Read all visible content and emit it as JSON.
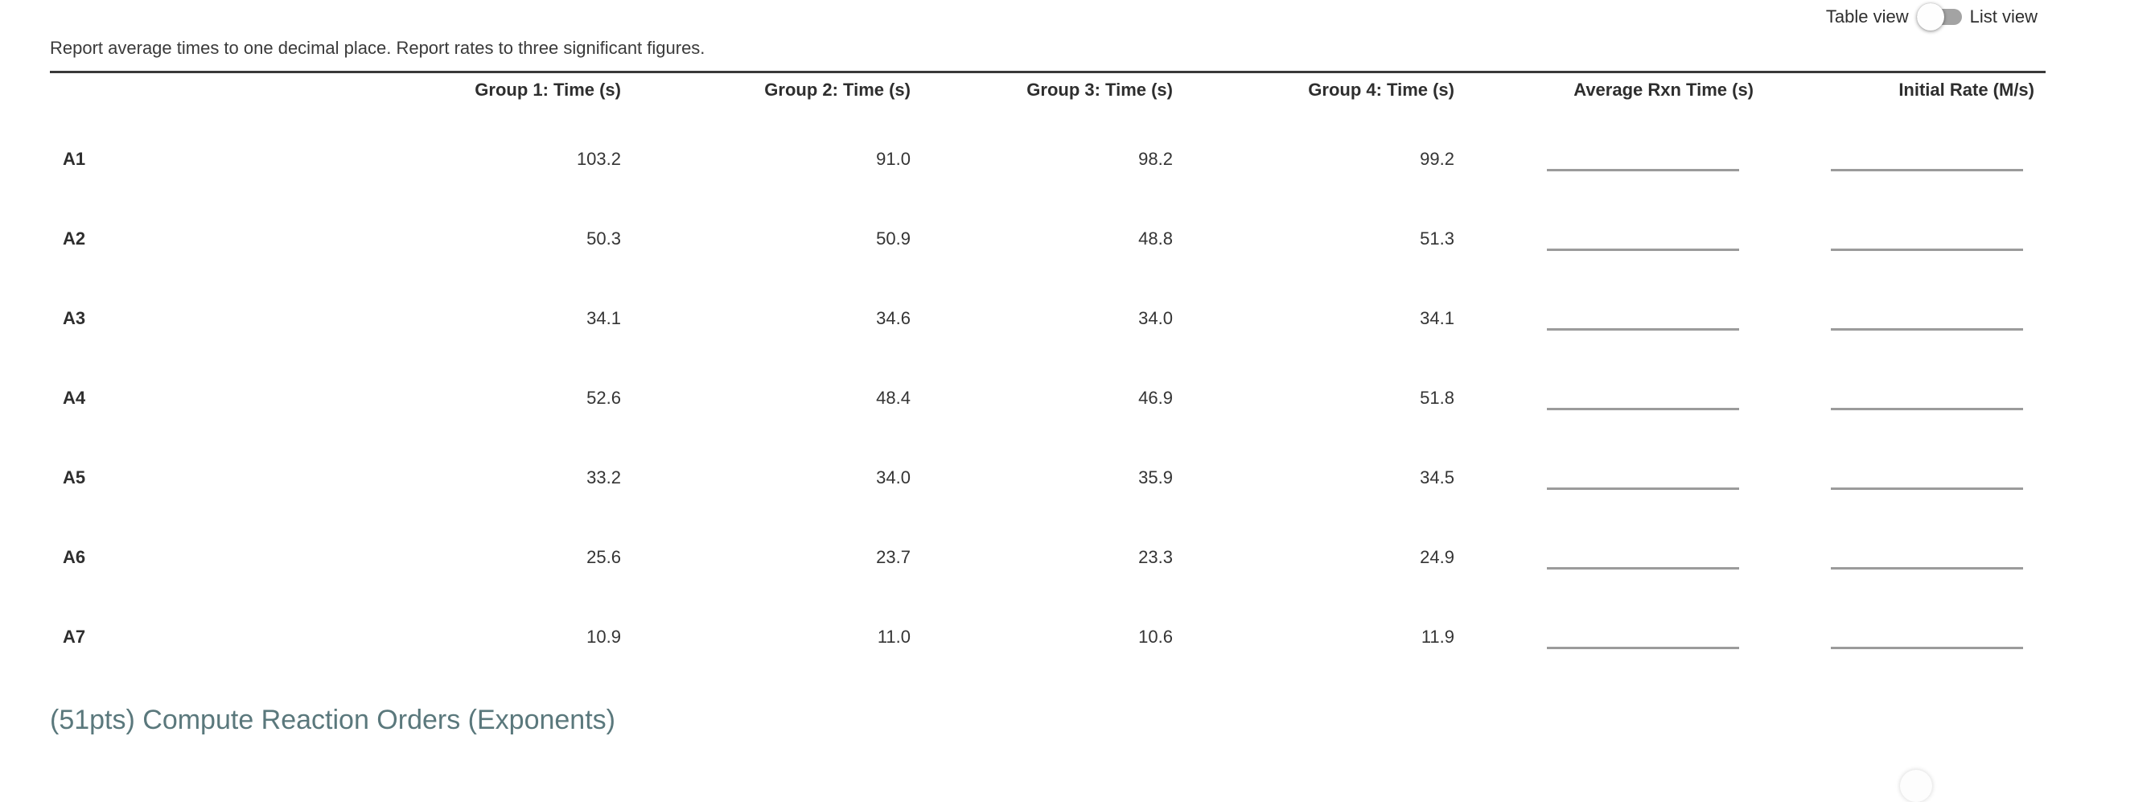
{
  "view_toggle": {
    "left_label": "Table view",
    "right_label": "List view",
    "state": "table"
  },
  "instructions": "Report average times to one decimal place. Report rates to three significant figures.",
  "table": {
    "columns": [
      "Group 1: Time (s)",
      "Group 2: Time (s)",
      "Group 3: Time (s)",
      "Group 4: Time (s)",
      "Average Rxn Time (s)",
      "Initial Rate (M/s)"
    ],
    "rows": [
      {
        "label": "A1",
        "values": [
          "103.2",
          "91.0",
          "98.2",
          "99.2"
        ],
        "avg_input": "",
        "rate_input": ""
      },
      {
        "label": "A2",
        "values": [
          "50.3",
          "50.9",
          "48.8",
          "51.3"
        ],
        "avg_input": "",
        "rate_input": ""
      },
      {
        "label": "A3",
        "values": [
          "34.1",
          "34.6",
          "34.0",
          "34.1"
        ],
        "avg_input": "",
        "rate_input": ""
      },
      {
        "label": "A4",
        "values": [
          "52.6",
          "48.4",
          "46.9",
          "51.8"
        ],
        "avg_input": "",
        "rate_input": ""
      },
      {
        "label": "A5",
        "values": [
          "33.2",
          "34.0",
          "35.9",
          "34.5"
        ],
        "avg_input": "",
        "rate_input": ""
      },
      {
        "label": "A6",
        "values": [
          "25.6",
          "23.7",
          "23.3",
          "24.9"
        ],
        "avg_input": "",
        "rate_input": ""
      },
      {
        "label": "A7",
        "values": [
          "10.9",
          "11.0",
          "10.6",
          "11.9"
        ],
        "avg_input": "",
        "rate_input": ""
      }
    ]
  },
  "section_heading": "(51pts) Compute Reaction Orders (Exponents)",
  "colors": {
    "heading": "#5a787c",
    "underline": "#9b9b9b",
    "toggle_track": "#a3a3a3",
    "table_border": "#3a3a3a",
    "text": "#343434"
  }
}
